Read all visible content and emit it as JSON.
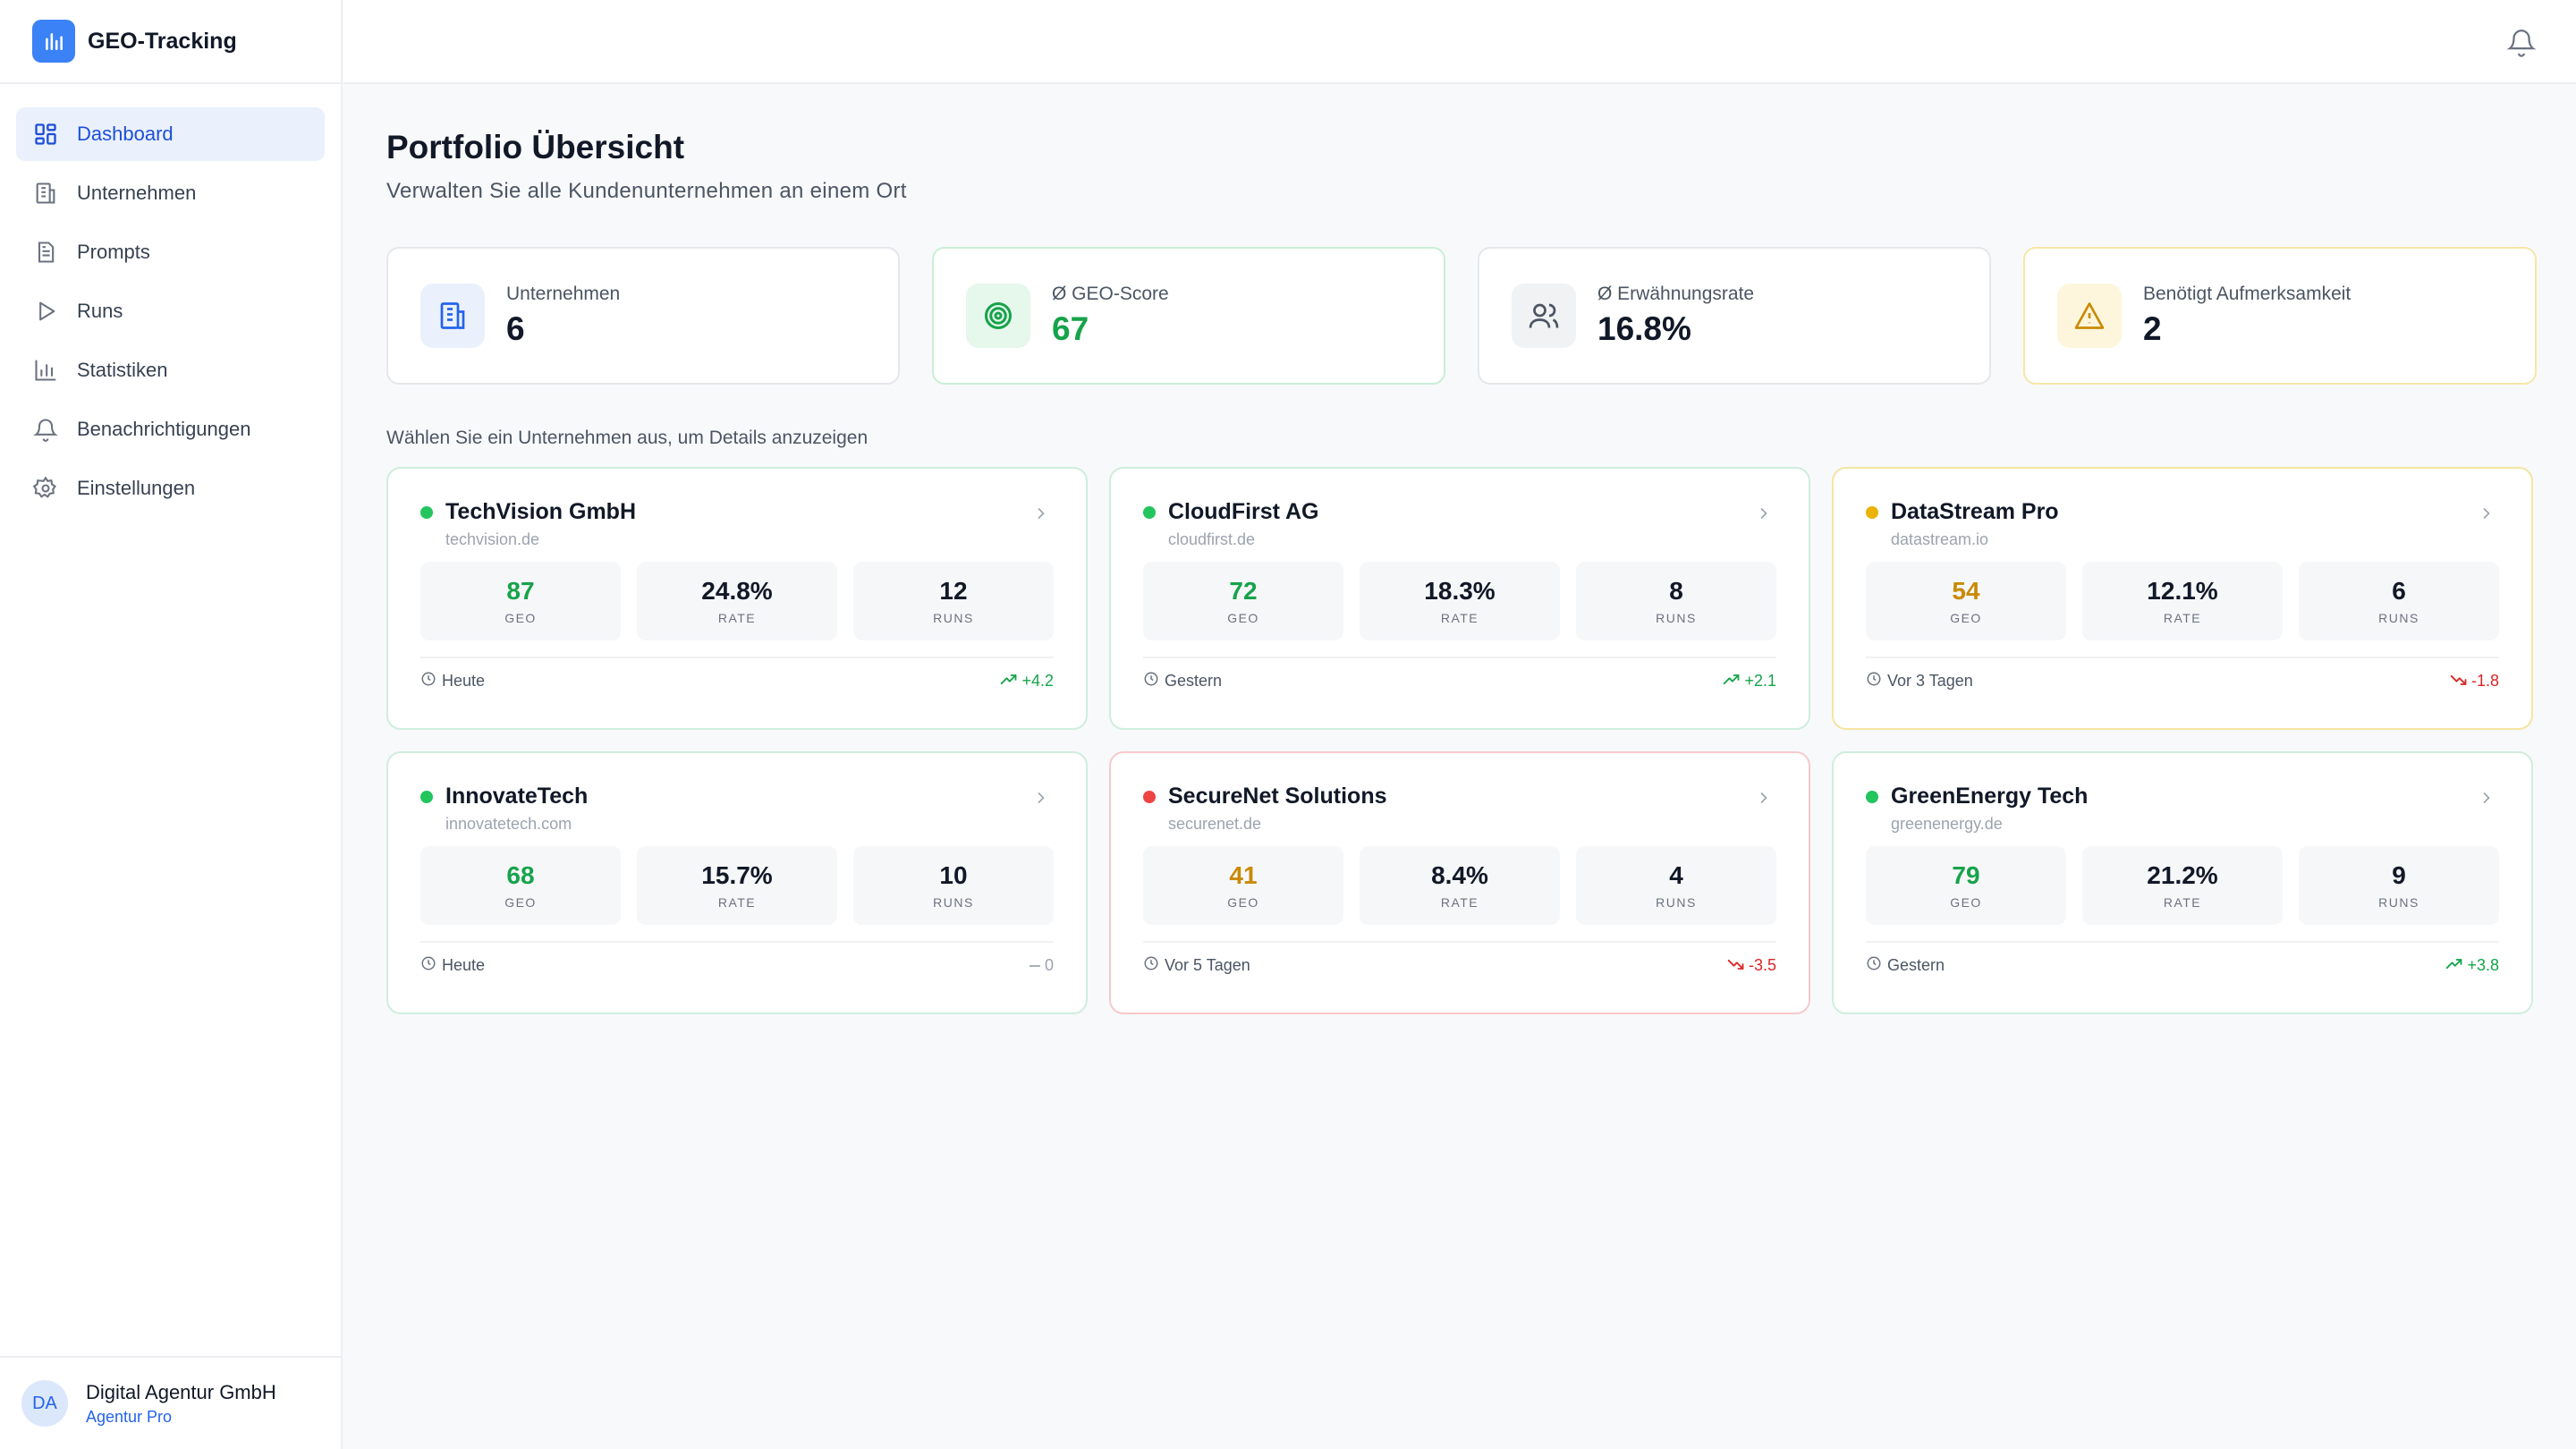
{
  "app": {
    "title": "GEO-Tracking",
    "accent_color": "#3b82f6"
  },
  "sidebar": {
    "items": [
      {
        "label": "Dashboard",
        "icon": "dashboard-icon",
        "active": true
      },
      {
        "label": "Unternehmen",
        "icon": "building-icon",
        "active": false
      },
      {
        "label": "Prompts",
        "icon": "document-icon",
        "active": false
      },
      {
        "label": "Runs",
        "icon": "play-icon",
        "active": false
      },
      {
        "label": "Statistiken",
        "icon": "bar-chart-icon",
        "active": false
      },
      {
        "label": "Benachrichtigungen",
        "icon": "bell-icon",
        "active": false
      },
      {
        "label": "Einstellungen",
        "icon": "gear-icon",
        "active": false
      }
    ],
    "account": {
      "initials": "DA",
      "name": "Digital Agentur GmbH",
      "plan": "Agentur Pro"
    }
  },
  "header": {
    "notification_icon": "bell-icon"
  },
  "page": {
    "title": "Portfolio Übersicht",
    "subtitle": "Verwalten Sie alle Kundenunternehmen an einem Ort"
  },
  "stats": [
    {
      "label": "Unternehmen",
      "value": "6",
      "icon": "building-icon"
    },
    {
      "label": "Ø GEO-Score",
      "value": "67",
      "icon": "target-icon"
    },
    {
      "label": "Ø Erwähnungsrate",
      "value": "16.8%",
      "icon": "users-icon"
    },
    {
      "label": "Benötigt Aufmerksamkeit",
      "value": "2",
      "icon": "warning-icon"
    }
  ],
  "select_hint": "Wählen Sie ein Unternehmen aus, um Details anzuzeigen",
  "metric_labels": {
    "geo": "GEO",
    "rate": "RATE",
    "runs": "RUNS"
  },
  "companies": [
    {
      "name": "TechVision GmbH",
      "domain": "techvision.de",
      "geo": "87",
      "rate": "24.8%",
      "runs": "12",
      "last_run": "Heute",
      "trend": "+4.2",
      "trend_dir": "up",
      "status": "green"
    },
    {
      "name": "CloudFirst AG",
      "domain": "cloudfirst.de",
      "geo": "72",
      "rate": "18.3%",
      "runs": "8",
      "last_run": "Gestern",
      "trend": "+2.1",
      "trend_dir": "up",
      "status": "green"
    },
    {
      "name": "DataStream Pro",
      "domain": "datastream.io",
      "geo": "54",
      "rate": "12.1%",
      "runs": "6",
      "last_run": "Vor 3 Tagen",
      "trend": "-1.8",
      "trend_dir": "down",
      "status": "yellow"
    },
    {
      "name": "InnovateTech",
      "domain": "innovatetech.com",
      "geo": "68",
      "rate": "15.7%",
      "runs": "10",
      "last_run": "Heute",
      "trend": "0",
      "trend_dir": "flat",
      "status": "green"
    },
    {
      "name": "SecureNet Solutions",
      "domain": "securenet.de",
      "geo": "41",
      "rate": "8.4%",
      "runs": "4",
      "last_run": "Vor 5 Tagen",
      "trend": "-3.5",
      "trend_dir": "down",
      "status": "red"
    },
    {
      "name": "GreenEnergy Tech",
      "domain": "greenenergy.de",
      "geo": "79",
      "rate": "21.2%",
      "runs": "9",
      "last_run": "Gestern",
      "trend": "+3.8",
      "trend_dir": "up",
      "status": "green"
    }
  ],
  "colors": {
    "green": "#22c55e",
    "yellow": "#eab308",
    "red": "#ef4444"
  }
}
